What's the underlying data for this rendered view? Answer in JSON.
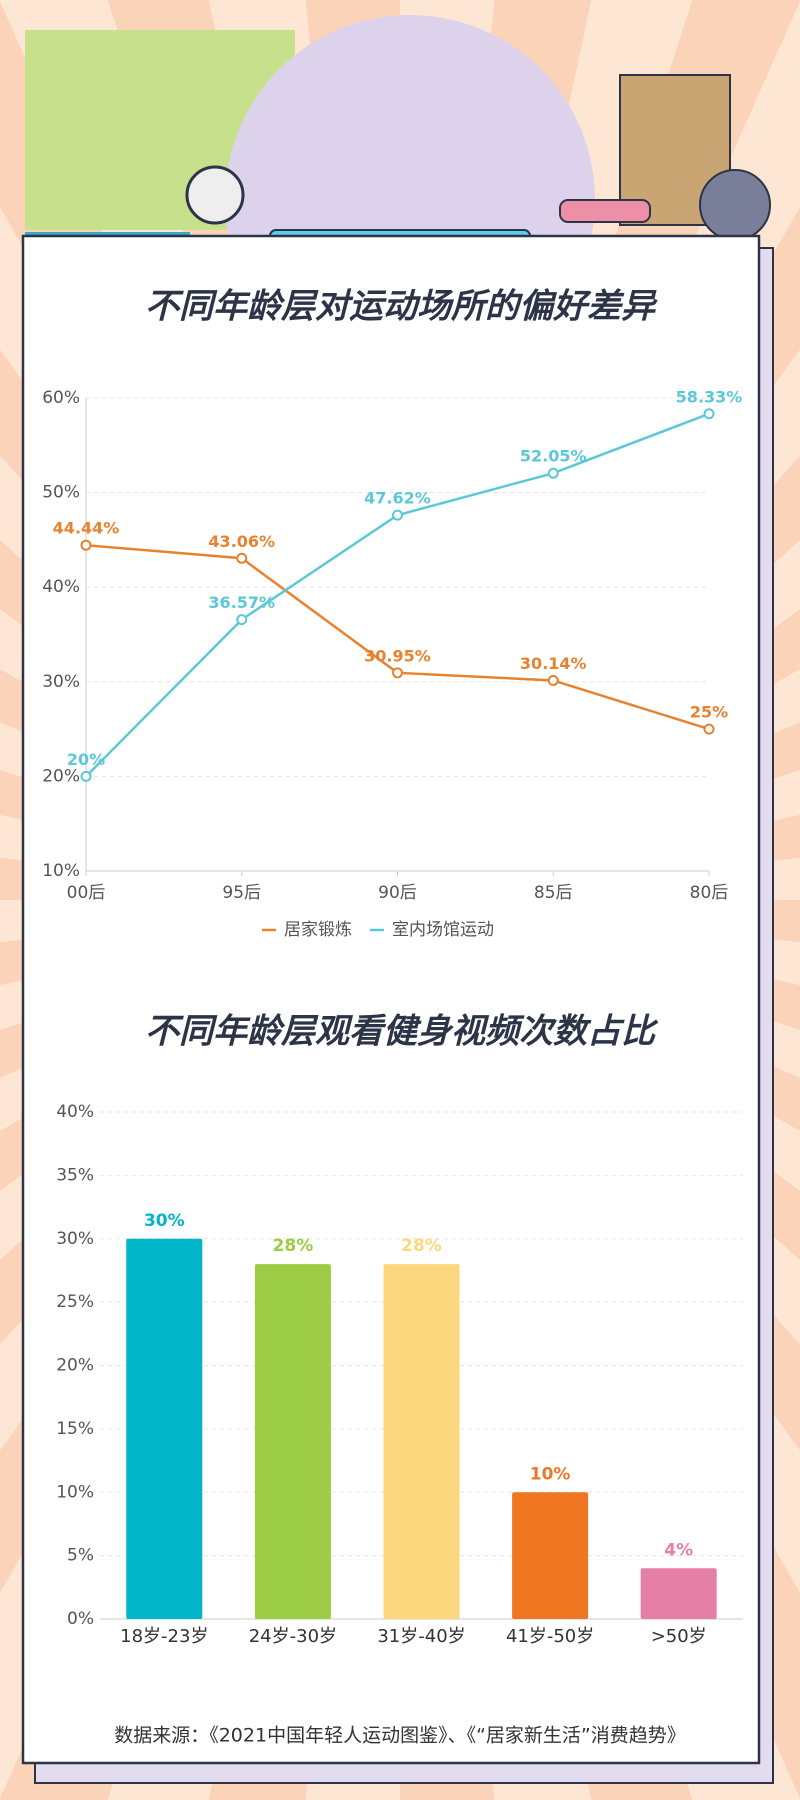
{
  "chart_data": [
    {
      "type": "line",
      "title": "不同年龄层对运动场所的偏好差异",
      "categories": [
        "00后",
        "95后",
        "90后",
        "85后",
        "80后"
      ],
      "series": [
        {
          "name": "居家锻炼",
          "color": "#e8822e",
          "values": [
            44.44,
            43.06,
            30.95,
            30.14,
            25
          ],
          "value_labels": [
            "44.44%",
            "43.06%",
            "30.95%",
            "30.14%",
            "25%"
          ]
        },
        {
          "name": "室内场馆运动",
          "color": "#5bc8d8",
          "values": [
            20,
            36.57,
            47.62,
            52.05,
            58.33
          ],
          "value_labels": [
            "20%",
            "36.57%",
            "47.62%",
            "52.05%",
            "58.33%"
          ]
        }
      ],
      "ylim": [
        10,
        60
      ],
      "yticks": [
        {
          "value": 10,
          "label": "10%"
        },
        {
          "value": 20,
          "label": "20%"
        },
        {
          "value": 30,
          "label": "30%"
        },
        {
          "value": 40,
          "label": "40%"
        },
        {
          "value": 50,
          "label": "50%"
        },
        {
          "value": 60,
          "label": "60%"
        }
      ],
      "grid": true,
      "legend": "bottom"
    },
    {
      "type": "bar",
      "title": "不同年龄层观看健身视频次数占比",
      "categories": [
        "18岁-23岁",
        "24岁-30岁",
        "31岁-40岁",
        "41岁-50岁",
        ">50岁"
      ],
      "values": [
        30,
        28,
        28,
        10,
        4
      ],
      "value_labels": [
        "30%",
        "28%",
        "28%",
        "10%",
        "4%"
      ],
      "colors": [
        "#00b5c8",
        "#9ccc44",
        "#fdd77d",
        "#f07622",
        "#e57fa5"
      ],
      "ylim": [
        0,
        40
      ],
      "yticks": [
        {
          "value": 0,
          "label": "0%"
        },
        {
          "value": 5,
          "label": "5%"
        },
        {
          "value": 10,
          "label": "10%"
        },
        {
          "value": 15,
          "label": "15%"
        },
        {
          "value": 20,
          "label": "20%"
        },
        {
          "value": 25,
          "label": "25%"
        },
        {
          "value": 30,
          "label": "30%"
        },
        {
          "value": 35,
          "label": "35%"
        },
        {
          "value": 40,
          "label": "40%"
        }
      ],
      "grid": true
    }
  ],
  "source": "数据来源：《2021中国年轻人运动图鉴》、《“居家新生活”消费趋势》"
}
